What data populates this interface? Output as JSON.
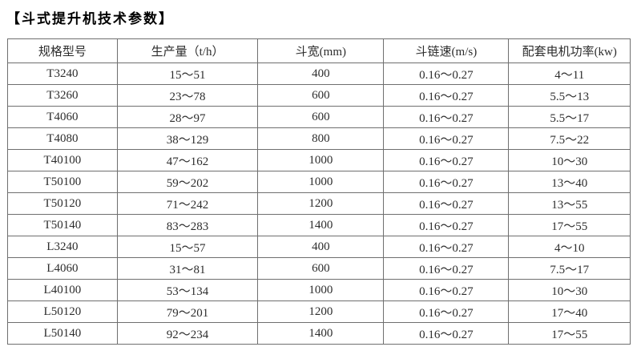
{
  "page": {
    "background_color": "#ffffff",
    "border_color": "#6f6f6f",
    "text_color": "#2d2d2d"
  },
  "title": {
    "text": "【斗式提升机技术参数】"
  },
  "table": {
    "columns": [
      "规格型号",
      "生产量（t/h）",
      "斗宽(mm)",
      "斗链速(m/s)",
      "配套电机功率(kw)"
    ],
    "rows": [
      [
        "T3240",
        "15～51",
        "400",
        "0.16～0.27",
        "4～11"
      ],
      [
        "T3260",
        "23～78",
        "600",
        "0.16～0.27",
        "5.5～13"
      ],
      [
        "T4060",
        "28～97",
        "600",
        "0.16～0.27",
        "5.5～17"
      ],
      [
        "T4080",
        "38～129",
        "800",
        "0.16～0.27",
        "7.5～22"
      ],
      [
        "T40100",
        "47～162",
        "1000",
        "0.16～0.27",
        "10～30"
      ],
      [
        "T50100",
        "59～202",
        "1000",
        "0.16～0.27",
        "13～40"
      ],
      [
        "T50120",
        "71～242",
        "1200",
        "0.16～0.27",
        "13～55"
      ],
      [
        "T50140",
        "83～283",
        "1400",
        "0.16～0.27",
        "17～55"
      ],
      [
        "L3240",
        "15～57",
        "400",
        "0.16～0.27",
        "4～10"
      ],
      [
        "L4060",
        "31～81",
        "600",
        "0.16～0.27",
        "7.5～17"
      ],
      [
        "L40100",
        "53～134",
        "1000",
        "0.16～0.27",
        "10～30"
      ],
      [
        "L50120",
        "79～201",
        "1200",
        "0.16～0.27",
        "17～40"
      ],
      [
        "L50140",
        "92～234",
        "1400",
        "0.16～0.27",
        "17～55"
      ]
    ]
  },
  "chart_data": {
    "type": "table",
    "title": "斗式提升机技术参数",
    "columns": [
      "规格型号",
      "生产量（t/h）",
      "斗宽(mm)",
      "斗链速(m/s)",
      "配套电机功率(kw)"
    ],
    "rows": [
      [
        "T3240",
        "15～51",
        "400",
        "0.16～0.27",
        "4～11"
      ],
      [
        "T3260",
        "23～78",
        "600",
        "0.16～0.27",
        "5.5～13"
      ],
      [
        "T4060",
        "28～97",
        "600",
        "0.16～0.27",
        "5.5～17"
      ],
      [
        "T4080",
        "38～129",
        "800",
        "0.16～0.27",
        "7.5～22"
      ],
      [
        "T40100",
        "47～162",
        "1000",
        "0.16～0.27",
        "10～30"
      ],
      [
        "T50100",
        "59～202",
        "1000",
        "0.16～0.27",
        "13～40"
      ],
      [
        "T50120",
        "71～242",
        "1200",
        "0.16～0.27",
        "13～55"
      ],
      [
        "T50140",
        "83～283",
        "1400",
        "0.16～0.27",
        "17～55"
      ],
      [
        "L3240",
        "15～57",
        "400",
        "0.16～0.27",
        "4～10"
      ],
      [
        "L4060",
        "31～81",
        "600",
        "0.16～0.27",
        "7.5～17"
      ],
      [
        "L40100",
        "53～134",
        "1000",
        "0.16～0.27",
        "10～30"
      ],
      [
        "L50120",
        "79～201",
        "1200",
        "0.16～0.27",
        "17～40"
      ],
      [
        "L50140",
        "92～234",
        "1400",
        "0.16～0.27",
        "17～55"
      ]
    ]
  }
}
